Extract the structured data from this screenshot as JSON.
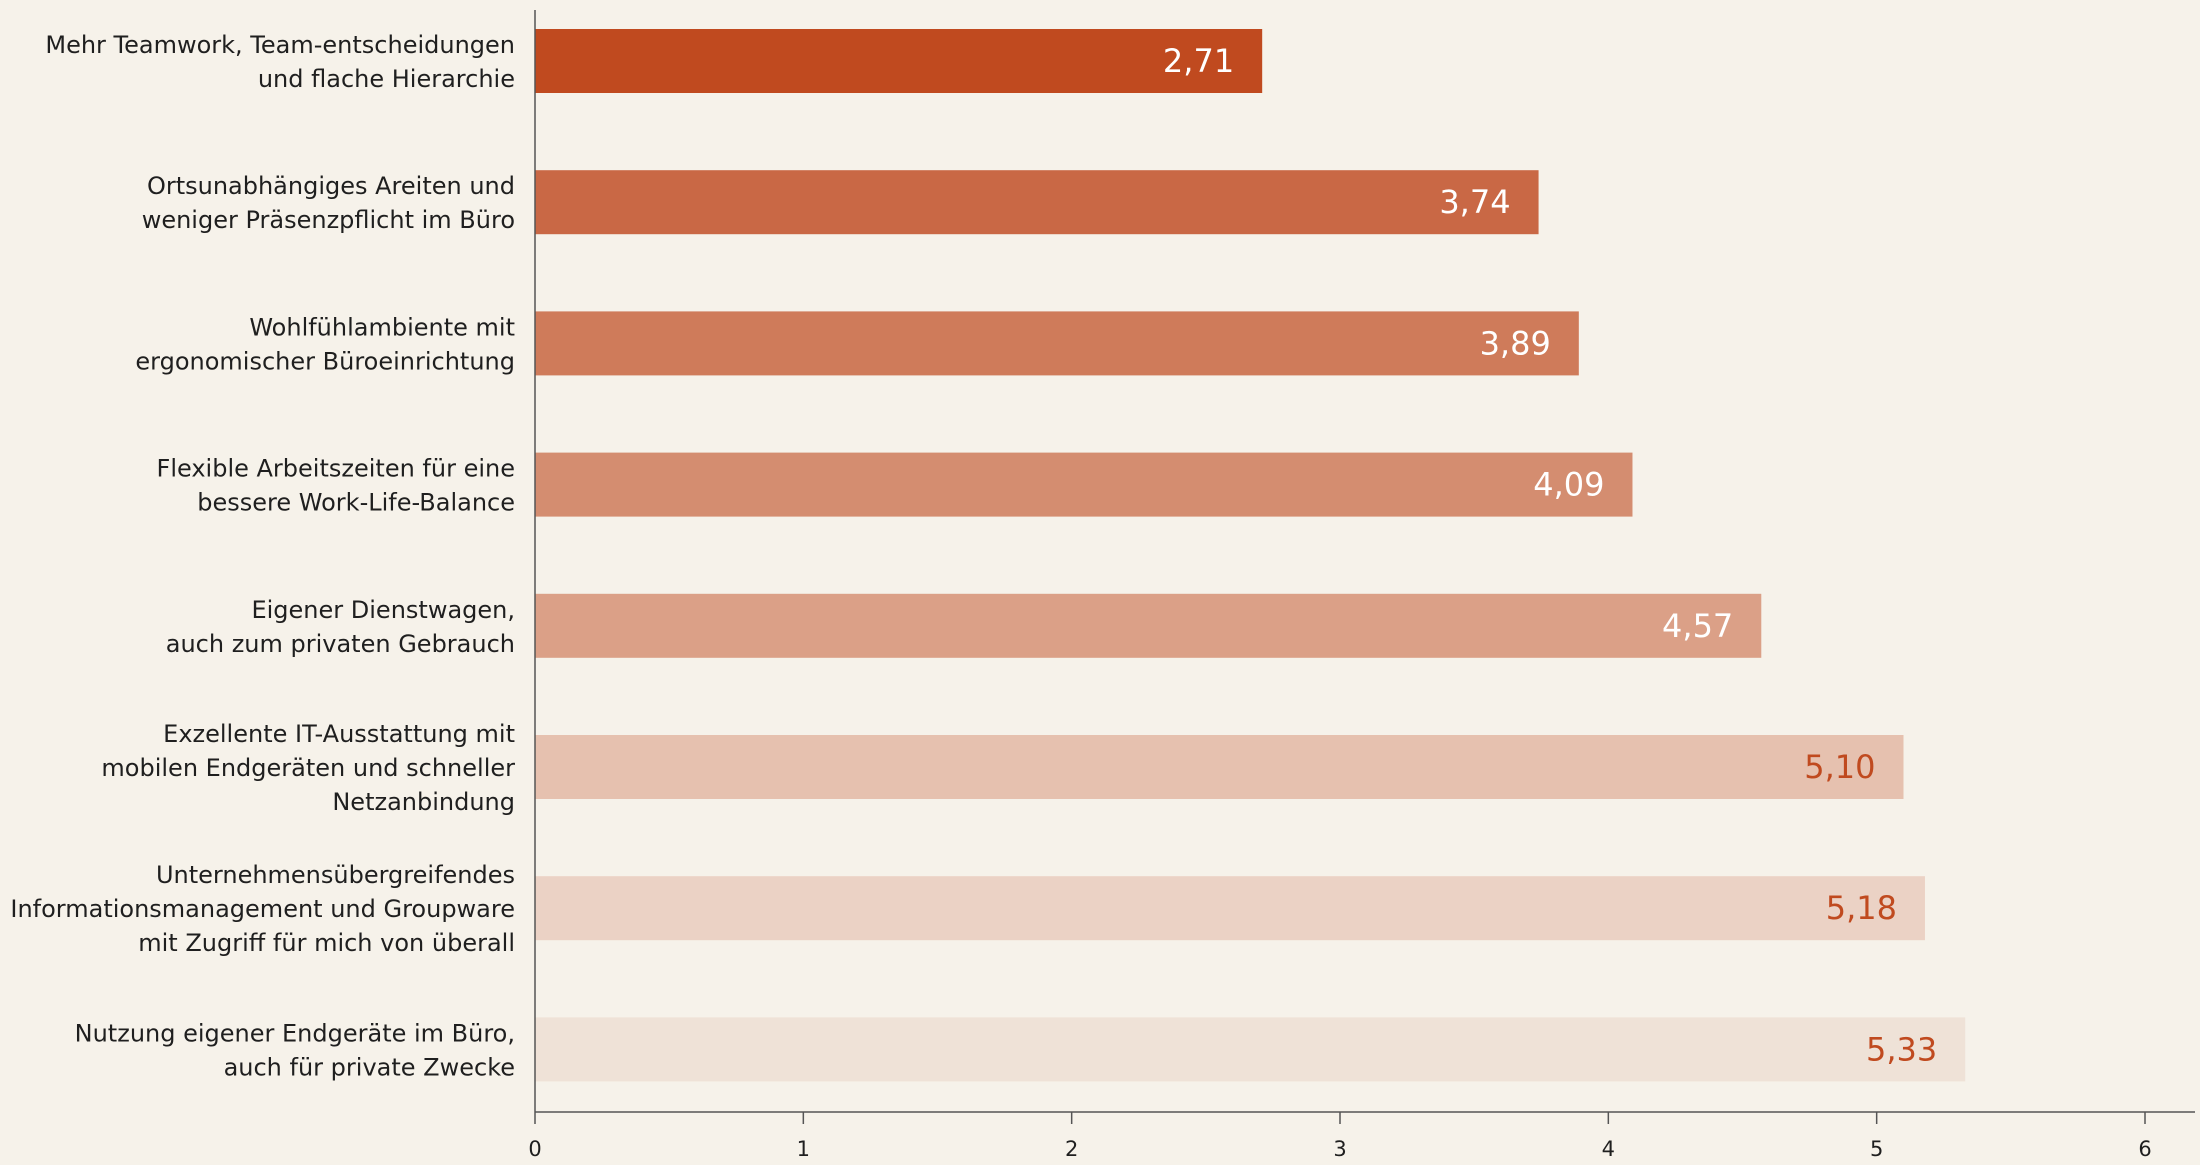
{
  "chart_data": {
    "type": "bar",
    "orientation": "horizontal",
    "title": "",
    "xlabel": "",
    "ylabel": "",
    "categories": [
      [
        "Mehr Teamwork, Team-entscheidungen",
        "und flache Hierarchie"
      ],
      [
        "Ortsunabhängiges Areiten und",
        "weniger Präsenzpflicht im Büro"
      ],
      [
        "Wohlfühlambiente mit",
        "ergonomischer Büroeinrichtung"
      ],
      [
        "Flexible Arbeitszeiten für eine",
        "bessere Work-Life-Balance"
      ],
      [
        "Eigener Dienstwagen,",
        "auch zum privaten Gebrauch"
      ],
      [
        "Exzellente IT-Ausstattung mit",
        "mobilen Endgeräten und schneller",
        "Netzanbindung"
      ],
      [
        "Unternehmensübergreifendes",
        "Informationsmanagement und Groupware",
        "mit Zugriff für mich von überall"
      ],
      [
        "Nutzung eigener Endgeräte im Büro,",
        "auch für private Zwecke"
      ]
    ],
    "values": [
      2.71,
      3.74,
      3.89,
      4.09,
      4.57,
      5.1,
      5.18,
      5.33
    ],
    "value_labels": [
      "2,71",
      "3,74",
      "3,89",
      "4,09",
      "4,57",
      "5,10",
      "5,18",
      "5,33"
    ],
    "bar_colors": [
      "#c04a1f",
      "#c96845",
      "#cf7b5a",
      "#d48d70",
      "#dba087",
      "#e6c1af",
      "#ebd2c5",
      "#efe2d7"
    ],
    "value_label_colors": [
      "#ffffff",
      "#ffffff",
      "#ffffff",
      "#ffffff",
      "#ffffff",
      "#c04a1f",
      "#c04a1f",
      "#c04a1f"
    ],
    "xlim": [
      0,
      6
    ],
    "xticks": [
      "0",
      "1",
      "2",
      "3",
      "4",
      "5",
      "6"
    ],
    "grid": false,
    "legend": "none"
  },
  "colors": {
    "background": "#f6f2ea",
    "axis": "#555555",
    "text": "#1f1f1f"
  }
}
